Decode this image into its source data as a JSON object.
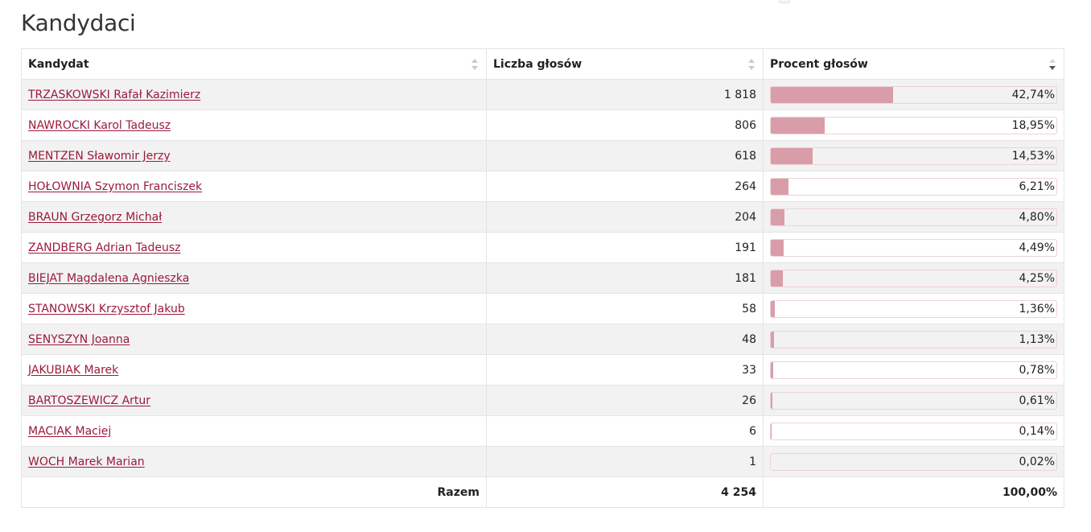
{
  "heading": "Kandydaci",
  "columns": {
    "candidate": "Kandydat",
    "votes": "Liczba głosów",
    "percent": "Procent głosów"
  },
  "sort": {
    "column": "percent",
    "direction": "descending"
  },
  "colors": {
    "link": "#9b1a3b",
    "bar": "#d99da9",
    "bar_border": "#ecd2d9",
    "row_stripe": "#f2f2f2"
  },
  "rows": [
    {
      "name": "TRZASKOWSKI Rafał Kazimierz",
      "votes": "1 818",
      "percent": "42,74%",
      "share": 42.74
    },
    {
      "name": "NAWROCKI Karol Tadeusz",
      "votes": "806",
      "percent": "18,95%",
      "share": 18.95
    },
    {
      "name": "MENTZEN Sławomir Jerzy",
      "votes": "618",
      "percent": "14,53%",
      "share": 14.53
    },
    {
      "name": "HOŁOWNIA Szymon Franciszek",
      "votes": "264",
      "percent": "6,21%",
      "share": 6.21
    },
    {
      "name": "BRAUN Grzegorz Michał",
      "votes": "204",
      "percent": "4,80%",
      "share": 4.8
    },
    {
      "name": "ZANDBERG Adrian Tadeusz",
      "votes": "191",
      "percent": "4,49%",
      "share": 4.49
    },
    {
      "name": "BIEJAT Magdalena Agnieszka",
      "votes": "181",
      "percent": "4,25%",
      "share": 4.25
    },
    {
      "name": "STANOWSKI Krzysztof Jakub",
      "votes": "58",
      "percent": "1,36%",
      "share": 1.36
    },
    {
      "name": "SENYSZYN Joanna",
      "votes": "48",
      "percent": "1,13%",
      "share": 1.13
    },
    {
      "name": "JAKUBIAK Marek",
      "votes": "33",
      "percent": "0,78%",
      "share": 0.78
    },
    {
      "name": "BARTOSZEWICZ Artur",
      "votes": "26",
      "percent": "0,61%",
      "share": 0.61
    },
    {
      "name": "MACIAK Maciej",
      "votes": "6",
      "percent": "0,14%",
      "share": 0.14
    },
    {
      "name": "WOCH Marek Marian",
      "votes": "1",
      "percent": "0,02%",
      "share": 0.02
    }
  ],
  "footer": {
    "label": "Razem",
    "votes": "4 254",
    "percent": "100,00%"
  }
}
